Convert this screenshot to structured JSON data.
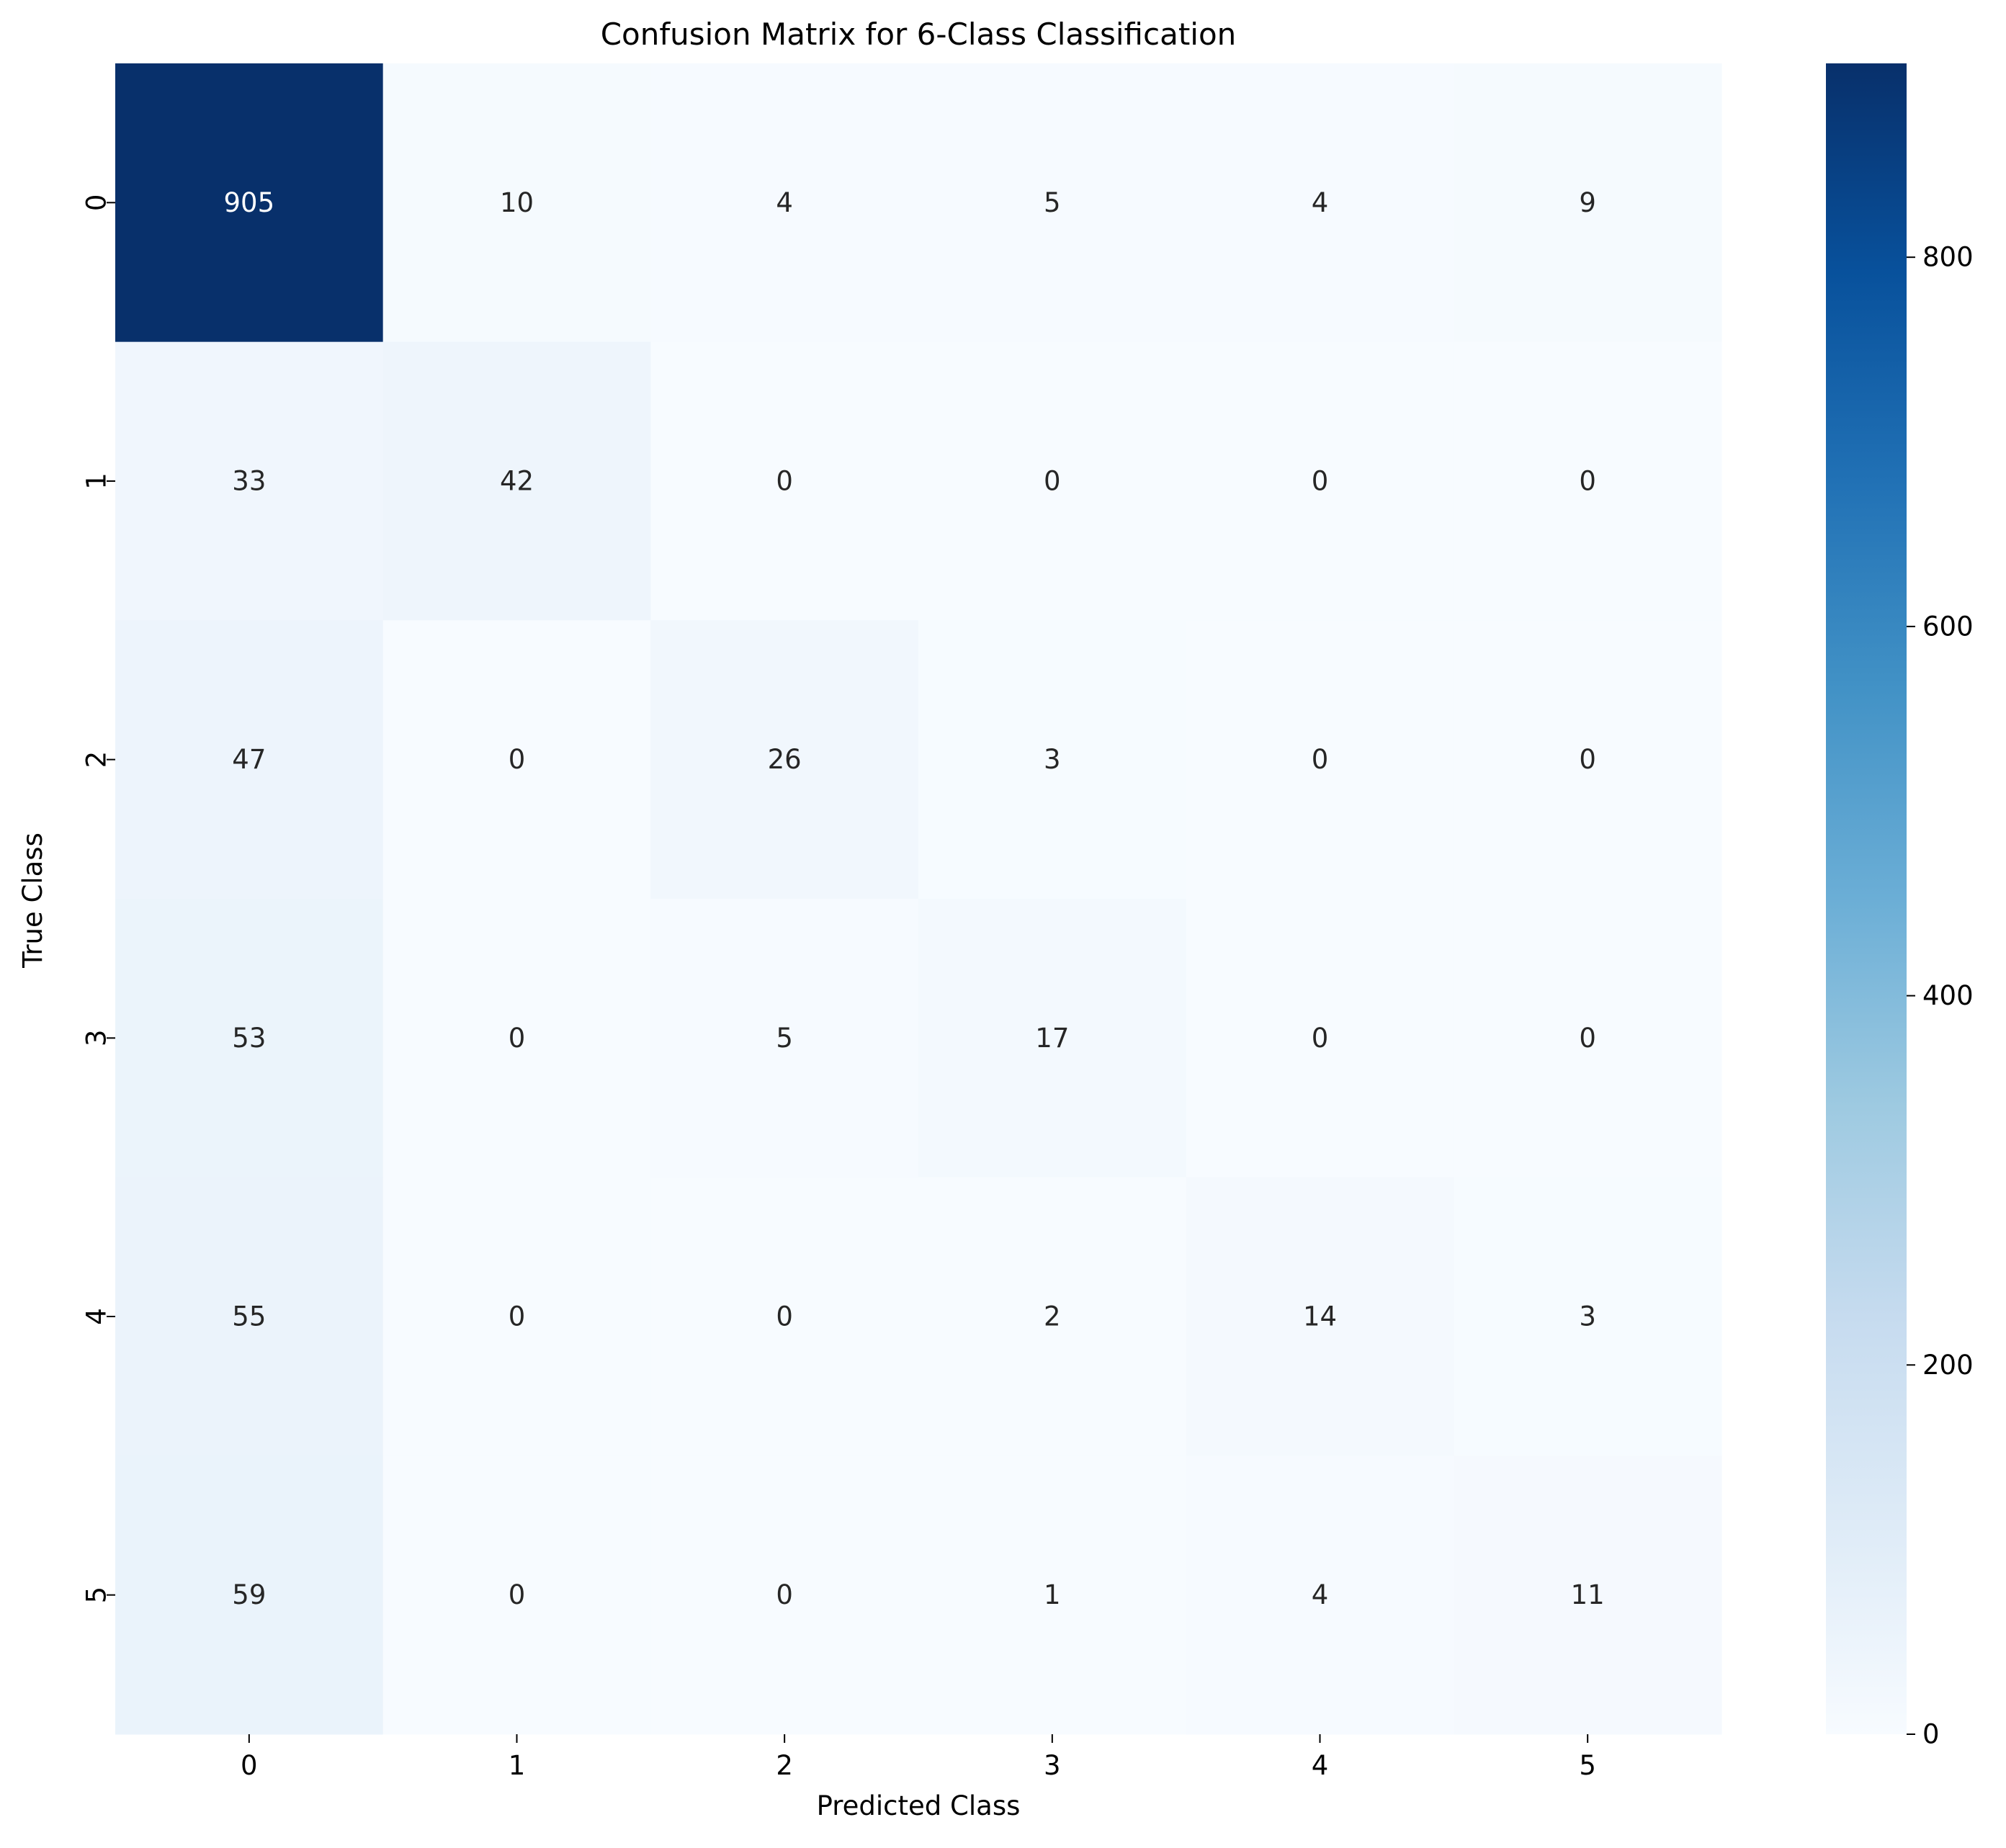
{
  "chart_data": {
    "type": "heatmap",
    "title": "Confusion Matrix for 6-Class Classification",
    "xlabel": "Predicted Class",
    "ylabel": "True Class",
    "x_categories": [
      "0",
      "1",
      "2",
      "3",
      "4",
      "5"
    ],
    "y_categories": [
      "0",
      "1",
      "2",
      "3",
      "4",
      "5"
    ],
    "values": [
      [
        905,
        10,
        4,
        5,
        4,
        9
      ],
      [
        33,
        42,
        0,
        0,
        0,
        0
      ],
      [
        47,
        0,
        26,
        3,
        0,
        0
      ],
      [
        53,
        0,
        5,
        17,
        0,
        0
      ],
      [
        55,
        0,
        0,
        2,
        14,
        3
      ],
      [
        59,
        0,
        0,
        1,
        4,
        11
      ]
    ],
    "colormap": "Blues",
    "color_range": [
      0,
      905
    ],
    "colorbar_ticks": [
      0,
      200,
      400,
      600,
      800
    ],
    "colorbar_tick_labels": [
      "0",
      "200",
      "400",
      "600",
      "800"
    ],
    "colors": {
      "low": "#f7fbff",
      "high": "#08306b",
      "text_dark": "#262626",
      "text_light": "#ffffff"
    }
  }
}
